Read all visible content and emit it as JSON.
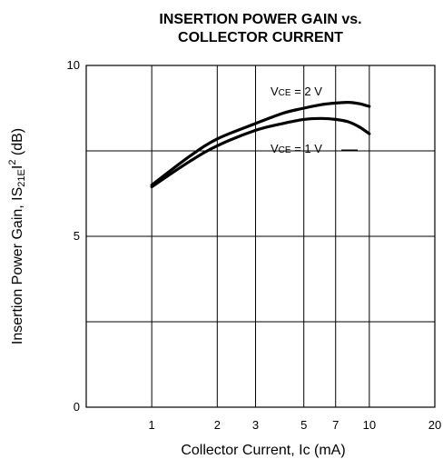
{
  "chart_data": {
    "type": "line",
    "title_line1": "INSERTION POWER GAIN vs.",
    "title_line2": "COLLECTOR CURRENT",
    "xlabel": "Collector Current, Ic (mA)",
    "ylabel_main": "Insertion Power Gain,  IS",
    "ylabel_sub": "21E",
    "ylabel_mid": "I",
    "ylabel_sup": "2",
    "ylabel_unit": " (dB)",
    "x_scale": "log",
    "xlim": [
      0.5,
      20
    ],
    "ylim": [
      0,
      10
    ],
    "x_ticks": [
      1,
      2,
      3,
      5,
      7,
      10,
      20
    ],
    "x_tick_labels": [
      "1",
      "2",
      "3",
      "5",
      "7",
      "10",
      "20"
    ],
    "x_gridlines": [
      1,
      2,
      3,
      5,
      7,
      10
    ],
    "y_ticks": [
      0,
      5,
      10
    ],
    "y_tick_labels": [
      "0",
      "5",
      "10"
    ],
    "y_gridlines": [
      2.5,
      5,
      7.5
    ],
    "grid": true,
    "series": [
      {
        "label_prefix": "V",
        "label_sub": "CE",
        "label_rest": " = 2 V",
        "x": [
          1,
          1.5,
          2,
          3,
          4,
          5,
          6,
          7,
          8,
          9,
          10
        ],
        "values": [
          6.5,
          7.35,
          7.85,
          8.3,
          8.6,
          8.75,
          8.85,
          8.9,
          8.92,
          8.88,
          8.8
        ]
      },
      {
        "label_prefix": "V",
        "label_sub": "CE",
        "label_rest": " = 1 V",
        "x": [
          1,
          1.5,
          2,
          3,
          4,
          5,
          6,
          7,
          8,
          9,
          10
        ],
        "values": [
          6.45,
          7.2,
          7.65,
          8.1,
          8.3,
          8.42,
          8.45,
          8.42,
          8.35,
          8.2,
          8.0
        ]
      }
    ]
  }
}
